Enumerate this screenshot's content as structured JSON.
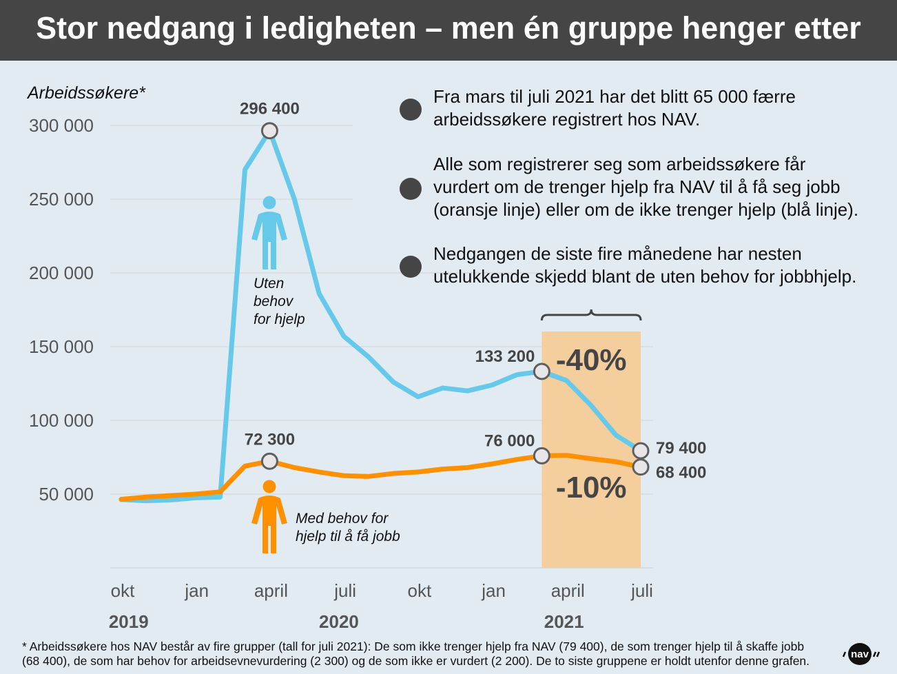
{
  "header": {
    "title": "Stor nedgang i ledigheten – men én gruppe henger etter"
  },
  "bullets": [
    {
      "icon": "bullet-dot",
      "text_lines": [
        "Fra mars til juli 2021 har det blitt 65 000 færre",
        "arbeidssøkere registrert hos NAV."
      ]
    },
    {
      "icon": "bullet-dot",
      "text_lines": [
        "Alle som registrerer seg som arbeidssøkere får",
        "vurdert om de trenger hjelp fra NAV til å få seg jobb",
        "(oransje linje) eller om de ikke trenger hjelp (blå linje)."
      ]
    },
    {
      "icon": "bullet-dot",
      "text_lines": [
        "Nedgangen de siste fire månedene har nesten",
        "utelukkende skjedd blant de uten behov for jobbhjelp."
      ]
    }
  ],
  "footnote": {
    "lines": [
      "* Arbeidssøkere hos NAV består av fire grupper (tall for juli 2021): De som ikke trenger hjelp fra NAV (79 400), de som trenger hjelp til å skaffe jobb",
      "(68 400), de som har behov for arbeidsevnevurdering (2 300) og de som ikke er vurdert (2 200). De to siste gruppene er holdt utenfor denne grafen."
    ]
  },
  "logo": {
    "text": "nav"
  },
  "colors": {
    "blue": "#66c9ea",
    "orange": "#ff9100",
    "highlight": "#f4cf9d",
    "grid": "#cfd5da",
    "marker_fill": "#e8e6e8",
    "marker_stroke": "#5f5f5f",
    "label": "#454545"
  },
  "chart_data": {
    "type": "line",
    "title": "Stor nedgang i ledigheten – men én gruppe henger etter",
    "ylabel": "Arbeidssøkere*",
    "xlabel": "",
    "ylim": [
      0,
      300000
    ],
    "yticks": [
      50000,
      100000,
      150000,
      200000,
      250000,
      300000
    ],
    "ytick_labels": [
      "50 000",
      "100 000",
      "150 000",
      "200 000",
      "250 000",
      "300 000"
    ],
    "grid": true,
    "x": [
      "2019-10",
      "2019-11",
      "2019-12",
      "2020-01",
      "2020-02",
      "2020-03",
      "2020-04",
      "2020-05",
      "2020-06",
      "2020-07",
      "2020-08",
      "2020-09",
      "2020-10",
      "2020-11",
      "2020-12",
      "2021-01",
      "2021-02",
      "2021-03",
      "2021-04",
      "2021-05",
      "2021-06",
      "2021-07"
    ],
    "xtick_labels": [
      {
        "index": 0,
        "label": "okt"
      },
      {
        "index": 3,
        "label": "jan"
      },
      {
        "index": 6,
        "label": "april"
      },
      {
        "index": 9,
        "label": "juli"
      },
      {
        "index": 12,
        "label": "okt"
      },
      {
        "index": 15,
        "label": "jan"
      },
      {
        "index": 18,
        "label": "april"
      },
      {
        "index": 21,
        "label": "juli"
      }
    ],
    "year_labels": [
      {
        "index": 0.3,
        "label": "2019"
      },
      {
        "index": 8.8,
        "label": "2020"
      },
      {
        "index": 17.9,
        "label": "2021"
      }
    ],
    "series": [
      {
        "name": "Uten behov for hjelp",
        "label_lines": [
          "Uten",
          "behov",
          "for hjelp"
        ],
        "color": "#66c9ea",
        "values": [
          46300,
          45500,
          46000,
          47500,
          48000,
          270000,
          296400,
          250000,
          186000,
          157000,
          143000,
          126000,
          116000,
          122000,
          120000,
          124000,
          131000,
          133200,
          127000,
          110000,
          90000,
          79400
        ]
      },
      {
        "name": "Med behov for hjelp til å få jobb",
        "label_lines": [
          "Med behov for",
          "hjelp til å få jobb"
        ],
        "color": "#ff9100",
        "values": [
          46500,
          48000,
          49000,
          50000,
          51500,
          69000,
          72300,
          68000,
          65000,
          62500,
          62000,
          64000,
          65000,
          67000,
          68000,
          70500,
          73500,
          76000,
          76300,
          74000,
          72000,
          68400
        ]
      }
    ],
    "annotations": [
      {
        "series": 0,
        "index": 6,
        "text": "296 400",
        "position": "above"
      },
      {
        "series": 1,
        "index": 6,
        "text": "72 300",
        "position": "above"
      },
      {
        "series": 0,
        "index": 17,
        "text": "133 200",
        "position": "left"
      },
      {
        "series": 1,
        "index": 17,
        "text": "76 000",
        "position": "left"
      },
      {
        "series": 0,
        "index": 21,
        "text": "79 400",
        "position": "right"
      },
      {
        "series": 1,
        "index": 21,
        "text": "68 400",
        "position": "right"
      }
    ],
    "highlight": {
      "from_index": 17,
      "to_index": 21,
      "labels": [
        {
          "text": "-40%",
          "series": 0
        },
        {
          "text": "-10%",
          "series": 1
        }
      ]
    }
  }
}
